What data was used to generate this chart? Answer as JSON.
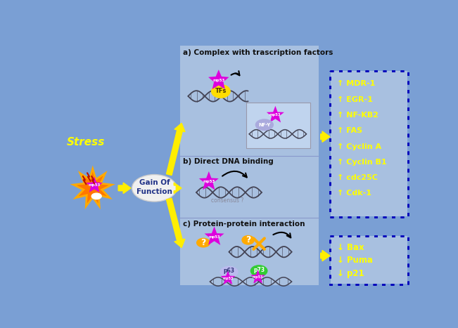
{
  "bg_color": "#7a9fd4",
  "panel_bg": "#a8c0e0",
  "text_color_yellow": "#ffff00",
  "stress_label": "Stress",
  "gain_label": "Gain Of\nFunction",
  "section_a": "a) Complex with trascription factors",
  "section_b": "b) Direct DNA binding",
  "section_c": "c) Protein-protein interaction",
  "up_genes": [
    "↑ MDR-1",
    "↑ EGR-1",
    "↑ NF-KB2",
    "↑ FAS",
    "↑ Cyclin A",
    "↑ Cyclin B1",
    "↑ cdc25C",
    "↑ Cdk-1"
  ],
  "down_genes": [
    "↓ Bax",
    "↓ Puma",
    "↓ p21"
  ],
  "mp53_color": "#dd00dd",
  "tf_color": "#ffdd00",
  "nfy_color": "#aaaadd",
  "p63_color": "#bbbbee",
  "p73_color": "#33cc33",
  "question_color": "#ffaa00",
  "arrow_color": "#ffee00",
  "star_outer": "#ffaa00",
  "star_inner": "#ff7700"
}
